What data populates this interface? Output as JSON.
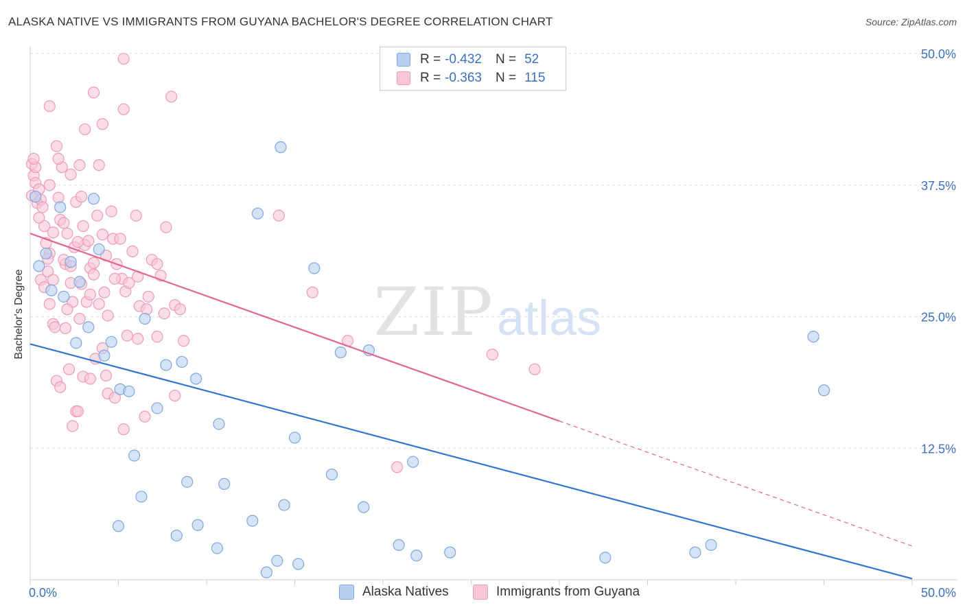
{
  "title": "ALASKA NATIVE VS IMMIGRANTS FROM GUYANA BACHELOR'S DEGREE CORRELATION CHART",
  "source": "Source: ZipAtlas.com",
  "watermark": {
    "zip": "ZIP",
    "atlas": "atlas"
  },
  "legend": {
    "rows": [
      {
        "r_label": "R =",
        "r_value": "-0.432",
        "n_label": "N =",
        "n_value": "52"
      },
      {
        "r_label": "R =",
        "r_value": "-0.363",
        "n_label": "N =",
        "n_value": "115"
      }
    ]
  },
  "bottom_legend": [
    "Alaska Natives",
    "Immigrants from Guyana"
  ],
  "colors": {
    "blue_fill": "#b8d0f0",
    "blue_stroke": "#7ea6df",
    "blue_line": "#2f74d0",
    "pink_fill": "#f8c6d6",
    "pink_stroke": "#ef9ab6",
    "pink_line": "#e4648f",
    "axis_text": "#3a6fc4",
    "grid": "#dddddd"
  },
  "chart_data": {
    "type": "scatter",
    "title": "ALASKA NATIVE VS IMMIGRANTS FROM GUYANA BACHELOR'S DEGREE CORRELATION CHART",
    "xlabel": "",
    "ylabel": "Bachelor's Degree",
    "xlim": [
      0,
      50
    ],
    "ylim": [
      0,
      50
    ],
    "x_tick_labels": [
      "0.0%",
      "50.0%"
    ],
    "y_tick_labels": [
      "12.5%",
      "25.0%",
      "37.5%",
      "50.0%"
    ],
    "y_ticks": [
      12.5,
      25.0,
      37.5,
      50.0
    ],
    "grid": true,
    "legend_position": "top-center",
    "series": [
      {
        "name": "Alaska Natives",
        "color": "#7ea6df",
        "R": -0.432,
        "N": 52,
        "trend": {
          "x": [
            0,
            50
          ],
          "y": [
            22.4,
            0.1
          ],
          "solid_to": 50
        },
        "points": [
          [
            0.3,
            36.4
          ],
          [
            0.5,
            29.8
          ],
          [
            0.9,
            31.0
          ],
          [
            1.2,
            27.5
          ],
          [
            1.9,
            26.9
          ],
          [
            1.7,
            35.4
          ],
          [
            2.3,
            30.2
          ],
          [
            2.8,
            28.3
          ],
          [
            3.3,
            24.0
          ],
          [
            3.6,
            36.2
          ],
          [
            3.9,
            31.4
          ],
          [
            4.2,
            21.3
          ],
          [
            4.6,
            22.6
          ],
          [
            2.6,
            22.5
          ],
          [
            5.1,
            18.1
          ],
          [
            5.6,
            17.9
          ],
          [
            6.5,
            24.8
          ],
          [
            7.2,
            16.3
          ],
          [
            7.7,
            20.4
          ],
          [
            8.6,
            20.7
          ],
          [
            9.4,
            19.1
          ],
          [
            10.7,
            14.8
          ],
          [
            5.9,
            11.8
          ],
          [
            6.3,
            7.9
          ],
          [
            8.9,
            9.3
          ],
          [
            11.0,
            9.1
          ],
          [
            12.6,
            5.6
          ],
          [
            9.5,
            5.2
          ],
          [
            8.3,
            4.2
          ],
          [
            5.0,
            5.1
          ],
          [
            10.6,
            3.0
          ],
          [
            13.4,
            0.7
          ],
          [
            14.0,
            1.8
          ],
          [
            15.2,
            1.5
          ],
          [
            14.4,
            7.1
          ],
          [
            15.0,
            13.5
          ],
          [
            17.1,
            10.0
          ],
          [
            18.9,
            6.9
          ],
          [
            20.9,
            3.3
          ],
          [
            21.9,
            2.3
          ],
          [
            23.8,
            2.6
          ],
          [
            21.7,
            11.2
          ],
          [
            12.9,
            34.8
          ],
          [
            14.2,
            41.1
          ],
          [
            16.1,
            29.6
          ],
          [
            17.6,
            21.6
          ],
          [
            19.2,
            21.8
          ],
          [
            32.6,
            2.1
          ],
          [
            37.7,
            2.6
          ],
          [
            38.6,
            3.3
          ],
          [
            44.4,
            23.1
          ],
          [
            45.0,
            18.0
          ]
        ]
      },
      {
        "name": "Immigrants from Guyana",
        "color": "#ef9ab6",
        "R": -0.363,
        "N": 115,
        "trend": {
          "x": [
            0,
            50
          ],
          "y": [
            32.9,
            3.2
          ],
          "solid_to": 30
        },
        "points": [
          [
            0.1,
            39.5
          ],
          [
            0.2,
            38.4
          ],
          [
            0.3,
            37.7
          ],
          [
            0.1,
            36.5
          ],
          [
            0.4,
            35.8
          ],
          [
            0.6,
            36.1
          ],
          [
            0.3,
            39.2
          ],
          [
            0.5,
            37.1
          ],
          [
            0.7,
            35.4
          ],
          [
            0.8,
            33.6
          ],
          [
            0.9,
            32.0
          ],
          [
            1.1,
            31.0
          ],
          [
            1.0,
            29.3
          ],
          [
            1.3,
            28.5
          ],
          [
            1.1,
            26.2
          ],
          [
            1.3,
            24.3
          ],
          [
            1.5,
            41.2
          ],
          [
            1.8,
            39.2
          ],
          [
            1.6,
            36.3
          ],
          [
            1.7,
            34.2
          ],
          [
            1.9,
            33.9
          ],
          [
            2.1,
            32.9
          ],
          [
            2.0,
            30.0
          ],
          [
            2.3,
            28.2
          ],
          [
            2.4,
            26.4
          ],
          [
            2.1,
            25.7
          ],
          [
            2.2,
            20.0
          ],
          [
            1.5,
            18.9
          ],
          [
            1.7,
            18.3
          ],
          [
            2.5,
            31.6
          ],
          [
            2.3,
            29.8
          ],
          [
            2.6,
            35.9
          ],
          [
            2.8,
            39.4
          ],
          [
            2.9,
            36.4
          ],
          [
            3.0,
            33.6
          ],
          [
            3.1,
            31.8
          ],
          [
            3.3,
            32.2
          ],
          [
            3.4,
            29.6
          ],
          [
            2.9,
            28.1
          ],
          [
            3.2,
            26.4
          ],
          [
            3.6,
            30.1
          ],
          [
            3.4,
            27.1
          ],
          [
            2.8,
            24.8
          ],
          [
            3.0,
            19.3
          ],
          [
            3.4,
            19.1
          ],
          [
            3.6,
            29.0
          ],
          [
            3.9,
            26.2
          ],
          [
            4.1,
            32.8
          ],
          [
            4.2,
            27.3
          ],
          [
            4.4,
            25.1
          ],
          [
            4.1,
            22.0
          ],
          [
            4.3,
            19.4
          ],
          [
            4.7,
            32.4
          ],
          [
            4.9,
            30.0
          ],
          [
            5.2,
            28.6
          ],
          [
            4.8,
            28.6
          ],
          [
            5.1,
            32.4
          ],
          [
            5.4,
            27.4
          ],
          [
            5.5,
            23.2
          ],
          [
            5.3,
            14.3
          ],
          [
            6.0,
            34.6
          ],
          [
            6.1,
            28.8
          ],
          [
            6.2,
            26.0
          ],
          [
            6.6,
            25.7
          ],
          [
            6.5,
            15.5
          ],
          [
            6.9,
            30.4
          ],
          [
            7.2,
            30.0
          ],
          [
            7.2,
            23.1
          ],
          [
            7.7,
            33.5
          ],
          [
            7.6,
            25.3
          ],
          [
            8.2,
            26.1
          ],
          [
            8.5,
            25.7
          ],
          [
            8.7,
            22.7
          ],
          [
            8.2,
            17.5
          ],
          [
            3.6,
            46.3
          ],
          [
            3.1,
            42.8
          ],
          [
            4.1,
            43.3
          ],
          [
            5.3,
            44.7
          ],
          [
            5.3,
            49.5
          ],
          [
            8.0,
            45.9
          ],
          [
            1.1,
            45.0
          ],
          [
            1.6,
            40.0
          ],
          [
            1.1,
            37.5
          ],
          [
            2.3,
            38.5
          ],
          [
            3.9,
            39.4
          ],
          [
            2.4,
            14.6
          ],
          [
            2.6,
            16.0
          ],
          [
            2.7,
            16.0
          ],
          [
            4.4,
            17.7
          ],
          [
            0.6,
            28.5
          ],
          [
            0.2,
            40.0
          ],
          [
            1.4,
            24.0
          ],
          [
            1.9,
            30.4
          ],
          [
            2.7,
            32.1
          ],
          [
            3.8,
            34.6
          ],
          [
            4.3,
            30.8
          ],
          [
            14.1,
            34.6
          ],
          [
            16.0,
            27.3
          ],
          [
            18.0,
            22.7
          ],
          [
            26.2,
            21.4
          ],
          [
            28.6,
            20.0
          ],
          [
            20.8,
            10.7
          ],
          [
            6.1,
            22.9
          ],
          [
            6.7,
            26.9
          ],
          [
            5.6,
            28.2
          ],
          [
            7.4,
            28.9
          ],
          [
            1.0,
            30.5
          ],
          [
            0.8,
            27.8
          ],
          [
            2.0,
            23.9
          ],
          [
            3.7,
            21.0
          ],
          [
            4.8,
            17.3
          ],
          [
            1.3,
            33.0
          ],
          [
            0.5,
            34.4
          ],
          [
            4.6,
            35.0
          ],
          [
            5.8,
            31.2
          ]
        ]
      }
    ]
  }
}
